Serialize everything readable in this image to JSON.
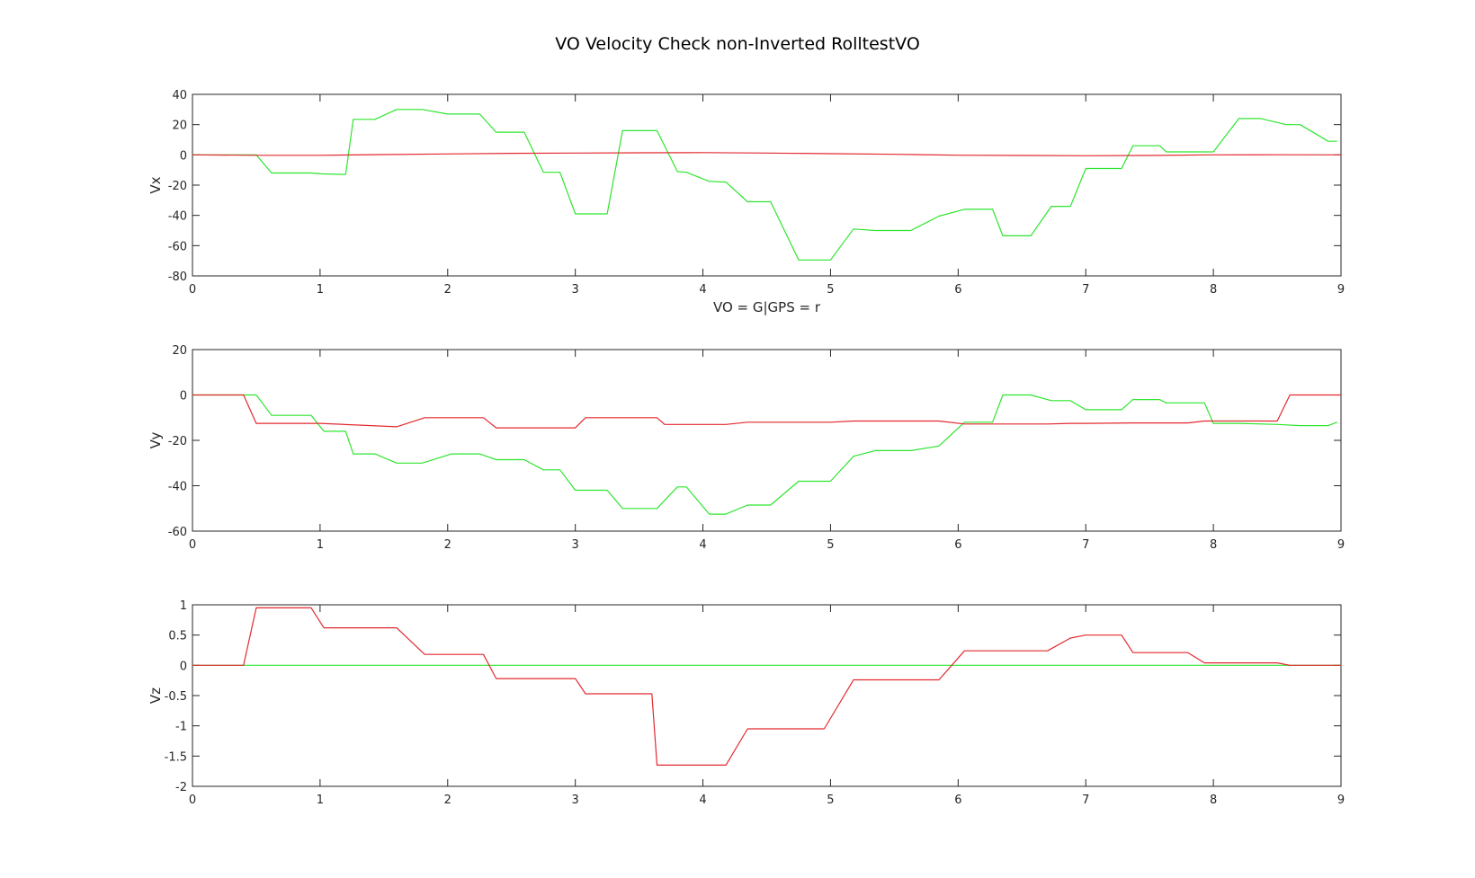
{
  "figure_title": "VO Velocity Check non-Inverted RolltestVO",
  "colors": {
    "vo": "#2fe52f",
    "gps": "#e2292f"
  },
  "chart_data": [
    {
      "type": "line",
      "ylabel": "Vx",
      "xlabel": "VO = G|GPS = r",
      "xlim": [
        0,
        9
      ],
      "ylim": [
        -80,
        40
      ],
      "xticks": [
        0,
        1,
        2,
        3,
        4,
        5,
        6,
        7,
        8,
        9
      ],
      "yticks": [
        40,
        20,
        0,
        -20,
        -40,
        -60,
        -80
      ],
      "grid": false,
      "series": [
        {
          "color": "#2fe52f",
          "x": [
            0,
            0.5,
            0.62,
            0.93,
            1.0,
            1.2,
            1.26,
            1.43,
            1.6,
            1.8,
            2.0,
            2.25,
            2.38,
            2.6,
            2.75,
            2.88,
            3.0,
            3.25,
            3.37,
            3.64,
            3.8,
            3.87,
            4.05,
            4.18,
            4.35,
            4.53,
            4.75,
            5.0,
            5.18,
            5.35,
            5.63,
            5.85,
            6.05,
            6.27,
            6.35,
            6.57,
            6.73,
            6.88,
            7.0,
            7.28,
            7.37,
            7.58,
            7.63,
            7.93,
            8.0,
            8.2,
            8.37,
            8.57,
            8.68,
            8.9,
            8.97
          ],
          "y": [
            0,
            0,
            -12,
            -12,
            -12.5,
            -13,
            23.5,
            23.5,
            30,
            30,
            27,
            27,
            15,
            15,
            -11.5,
            -11.5,
            -39,
            -39,
            16,
            16,
            -11,
            -11.5,
            -17.5,
            -18,
            -31,
            -31,
            -69.5,
            -69.5,
            -49,
            -50,
            -50,
            -40.5,
            -36,
            -36,
            -53.5,
            -53.5,
            -34,
            -34,
            -9,
            -9,
            6,
            6,
            2,
            2,
            2,
            24,
            24,
            20,
            20,
            9,
            9
          ]
        },
        {
          "color": "#e2292f",
          "x": [
            0,
            0.5,
            1.0,
            1.5,
            2.0,
            2.5,
            3.0,
            3.5,
            4.0,
            4.5,
            5.0,
            5.5,
            6.0,
            6.5,
            7.0,
            7.5,
            8.0,
            8.5,
            9.0
          ],
          "y": [
            0,
            -0.3,
            -0.3,
            0.2,
            0.6,
            1.0,
            1.2,
            1.4,
            1.5,
            1.2,
            0.8,
            0.4,
            -0.2,
            -0.4,
            -0.6,
            -0.4,
            0,
            0.1,
            0
          ]
        }
      ]
    },
    {
      "type": "line",
      "ylabel": "Vy",
      "xlim": [
        0,
        9
      ],
      "ylim": [
        -60,
        20
      ],
      "xticks": [
        0,
        1,
        2,
        3,
        4,
        5,
        6,
        7,
        8,
        9
      ],
      "yticks": [
        20,
        0,
        -20,
        -40,
        -60
      ],
      "grid": false,
      "series": [
        {
          "color": "#2fe52f",
          "x": [
            0,
            0.4,
            0.5,
            0.62,
            0.93,
            1.03,
            1.2,
            1.26,
            1.43,
            1.6,
            1.8,
            2.03,
            2.25,
            2.38,
            2.6,
            2.75,
            2.88,
            3.0,
            3.25,
            3.37,
            3.64,
            3.8,
            3.87,
            4.05,
            4.18,
            4.35,
            4.53,
            4.75,
            5.0,
            5.18,
            5.35,
            5.63,
            5.85,
            6.05,
            6.27,
            6.35,
            6.57,
            6.73,
            6.88,
            7.0,
            7.28,
            7.37,
            7.58,
            7.63,
            7.93,
            8.0,
            8.2,
            8.5,
            8.68,
            8.9,
            8.97
          ],
          "y": [
            0,
            0,
            0,
            -9,
            -9,
            -16,
            -16,
            -26,
            -26,
            -30,
            -30,
            -26,
            -26,
            -28.5,
            -28.5,
            -33,
            -33,
            -42,
            -42,
            -50,
            -50,
            -40.5,
            -40.5,
            -52.5,
            -52.5,
            -48.5,
            -48.5,
            -38,
            -38,
            -27,
            -24.5,
            -24.5,
            -22.5,
            -12,
            -12,
            0,
            0,
            -2.5,
            -2.5,
            -6.5,
            -6.5,
            -2,
            -2,
            -3.5,
            -3.5,
            -12.5,
            -12.5,
            -13,
            -13.5,
            -13.5,
            -12
          ]
        },
        {
          "color": "#e2292f",
          "x": [
            0,
            0.4,
            0.5,
            1.0,
            1.6,
            1.82,
            2.28,
            2.38,
            3.0,
            3.08,
            3.64,
            3.7,
            4.18,
            4.35,
            5.0,
            5.18,
            5.85,
            6.05,
            6.7,
            6.88,
            7.0,
            7.37,
            7.8,
            7.93,
            8.5,
            8.6,
            9.0
          ],
          "y": [
            0,
            0,
            -12.5,
            -12.5,
            -14,
            -10,
            -10,
            -14.5,
            -14.5,
            -10,
            -10,
            -13,
            -13,
            -12,
            -12,
            -11.5,
            -11.5,
            -12.8,
            -12.8,
            -12.5,
            -12.5,
            -12.3,
            -12.3,
            -11.5,
            -11.5,
            0,
            0
          ]
        }
      ]
    },
    {
      "type": "line",
      "ylabel": "Vz",
      "xlim": [
        0,
        9
      ],
      "ylim": [
        -2,
        1
      ],
      "xticks": [
        0,
        1,
        2,
        3,
        4,
        5,
        6,
        7,
        8,
        9
      ],
      "yticks": [
        1,
        0.5,
        0,
        -0.5,
        -1,
        -1.5,
        -2
      ],
      "grid": false,
      "series": [
        {
          "color": "#2fe52f",
          "x": [
            0,
            9
          ],
          "y": [
            0,
            0
          ]
        },
        {
          "color": "#e2292f",
          "x": [
            0,
            0.4,
            0.5,
            0.93,
            1.03,
            1.6,
            1.82,
            2.28,
            2.38,
            3.0,
            3.08,
            3.37,
            3.6,
            3.64,
            4.18,
            4.35,
            4.95,
            5.18,
            5.85,
            6.05,
            6.7,
            6.88,
            7.0,
            7.28,
            7.37,
            7.8,
            7.93,
            8.5,
            8.6,
            9.0
          ],
          "y": [
            0,
            0,
            0.95,
            0.95,
            0.62,
            0.62,
            0.18,
            0.18,
            -0.22,
            -0.22,
            -0.47,
            -0.47,
            -0.47,
            -1.65,
            -1.65,
            -1.05,
            -1.05,
            -0.24,
            -0.24,
            0.24,
            0.24,
            0.45,
            0.5,
            0.5,
            0.21,
            0.21,
            0.04,
            0.04,
            0,
            0
          ]
        }
      ]
    }
  ]
}
